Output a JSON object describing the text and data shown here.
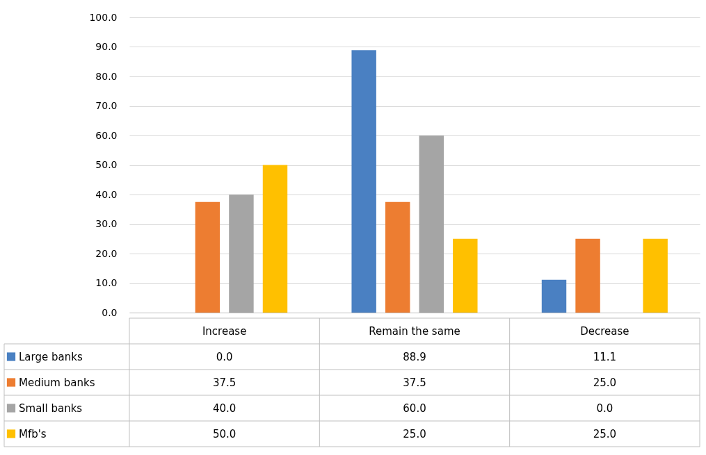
{
  "chart_data": {
    "type": "bar",
    "categories": [
      "Increase",
      "Remain the same",
      "Decrease"
    ],
    "series": [
      {
        "name": "Large banks",
        "color": "#4a80c2",
        "values": [
          0.0,
          88.9,
          11.1
        ],
        "value_labels": [
          "0.0",
          "88.9",
          "11.1"
        ]
      },
      {
        "name": "Medium banks",
        "color": "#ed7d31",
        "values": [
          37.5,
          37.5,
          25.0
        ],
        "value_labels": [
          "37.5",
          "37.5",
          "25.0"
        ]
      },
      {
        "name": "Small banks",
        "color": "#a5a5a5",
        "values": [
          40.0,
          60.0,
          0.0
        ],
        "value_labels": [
          "40.0",
          "60.0",
          "0.0"
        ]
      },
      {
        "name": "Mfb's",
        "color": "#ffc000",
        "values": [
          50.0,
          25.0,
          25.0
        ],
        "value_labels": [
          "50.0",
          "25.0",
          "25.0"
        ]
      }
    ],
    "ylim": [
      0,
      100
    ],
    "yticks": [
      {
        "value": 0,
        "label": "0.0"
      },
      {
        "value": 10,
        "label": "10.0"
      },
      {
        "value": 20,
        "label": "20.0"
      },
      {
        "value": 30,
        "label": "30.0"
      },
      {
        "value": 40,
        "label": "40.0"
      },
      {
        "value": 50,
        "label": "50.0"
      },
      {
        "value": 60,
        "label": "60.0"
      },
      {
        "value": 70,
        "label": "70.0"
      },
      {
        "value": 80,
        "label": "80.0"
      },
      {
        "value": 90,
        "label": "90.0"
      },
      {
        "value": 100,
        "label": "100.0"
      }
    ],
    "grid": "y",
    "legend": "bottom"
  }
}
